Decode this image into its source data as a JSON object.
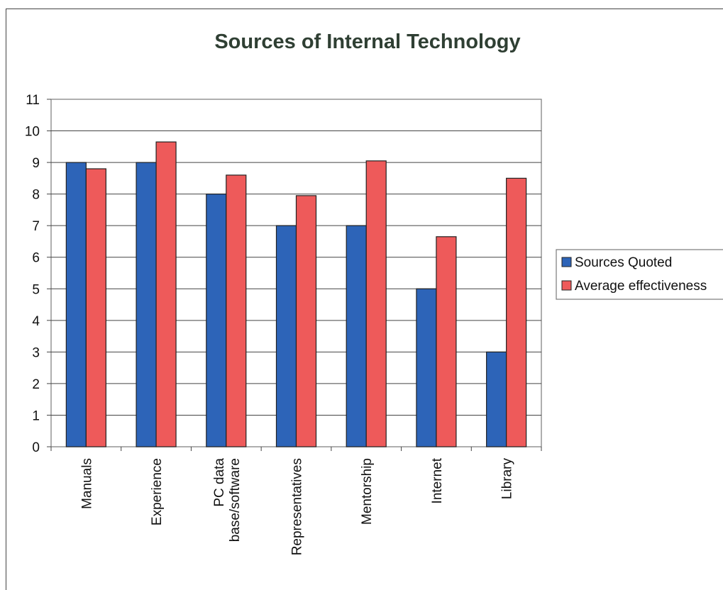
{
  "chart_data": {
    "type": "bar",
    "title": "Sources of Internal Technology",
    "xlabel": "",
    "ylabel": "",
    "ylim": [
      0,
      11
    ],
    "yticks": [
      "0",
      "1",
      "2",
      "3",
      "4",
      "5",
      "6",
      "7",
      "8",
      "9",
      "10",
      "11"
    ],
    "grid": true,
    "legend_position": "right",
    "categories": [
      "Manuals",
      "Experience",
      "PC data\nbase/software",
      "Representatives",
      "Mentorship",
      "Internet",
      "Library"
    ],
    "series": [
      {
        "name": "Sources Quoted",
        "color": "#2d64b8",
        "values": [
          9,
          9,
          8,
          7,
          7,
          5,
          3
        ]
      },
      {
        "name": "Average effectiveness",
        "color": "#ee5a5a",
        "values": [
          8.8,
          9.65,
          8.6,
          7.95,
          9.05,
          6.65,
          8.5
        ]
      }
    ]
  }
}
